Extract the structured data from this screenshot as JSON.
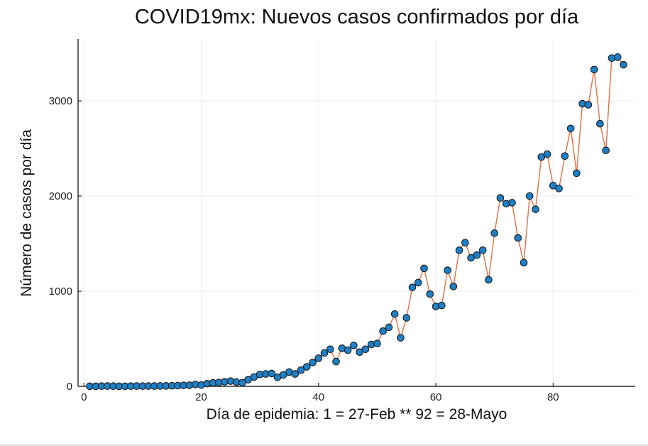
{
  "chart_data": {
    "type": "line",
    "title": "COVID19mx: Nuevos casos confirmados por día",
    "xlabel": "Día de epidemia: 1 = 27-Feb ** 92 = 28-Mayo",
    "ylabel": "Número de casos por día",
    "xlim": [
      -1,
      94
    ],
    "ylim": [
      0,
      3650
    ],
    "x_ticks": [
      0,
      20,
      40,
      60,
      80
    ],
    "y_ticks": [
      0,
      1000,
      2000,
      3000
    ],
    "grid": true,
    "legend": "none",
    "series": [
      {
        "line_color": "#e26f46",
        "marker_color": "#1f7fc4",
        "x": [
          1,
          2,
          3,
          4,
          5,
          6,
          7,
          8,
          9,
          10,
          11,
          12,
          13,
          14,
          15,
          16,
          17,
          18,
          19,
          20,
          21,
          22,
          23,
          24,
          25,
          26,
          27,
          28,
          29,
          30,
          31,
          32,
          33,
          34,
          35,
          36,
          37,
          38,
          39,
          40,
          41,
          42,
          43,
          44,
          45,
          46,
          47,
          48,
          49,
          50,
          51,
          52,
          53,
          54,
          55,
          56,
          57,
          58,
          59,
          60,
          61,
          62,
          63,
          64,
          65,
          66,
          67,
          68,
          69,
          70,
          71,
          72,
          73,
          74,
          75,
          76,
          77,
          78,
          79,
          80,
          81,
          82,
          83,
          84,
          85,
          86,
          87,
          88,
          89,
          90,
          91,
          92
        ],
        "values": [
          1,
          1,
          2,
          3,
          2,
          1,
          1,
          2,
          3,
          2,
          3,
          3,
          4,
          5,
          6,
          8,
          10,
          12,
          20,
          14,
          28,
          36,
          40,
          48,
          55,
          45,
          38,
          70,
          98,
          125,
          130,
          135,
          95,
          120,
          150,
          130,
          170,
          205,
          250,
          295,
          350,
          390,
          260,
          400,
          380,
          430,
          360,
          390,
          440,
          450,
          580,
          620,
          760,
          510,
          720,
          1040,
          1090,
          1240,
          970,
          840,
          850,
          1220,
          1050,
          1430,
          1510,
          1350,
          1380,
          1430,
          1120,
          1610,
          1980,
          1920,
          1930,
          1560,
          1300,
          2000,
          1860,
          2410,
          2440,
          2110,
          2080,
          2420,
          2710,
          2240,
          2970,
          2960,
          3330,
          2760,
          2480,
          3450,
          3460,
          3380
        ]
      }
    ]
  }
}
